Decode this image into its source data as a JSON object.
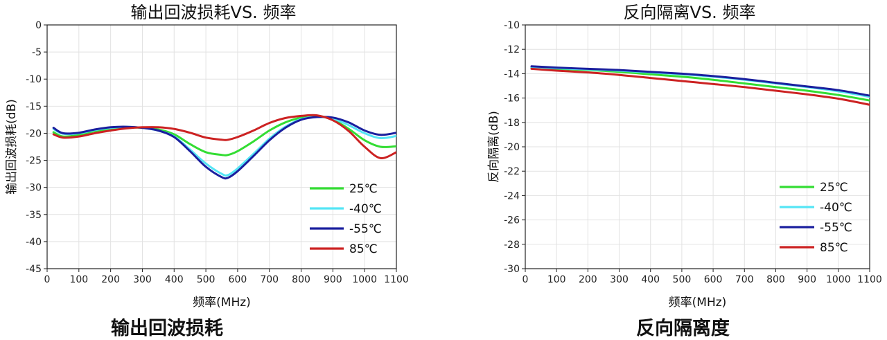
{
  "captions": [
    "输出回波损耗",
    "反向隔离度"
  ],
  "chart_data": [
    {
      "type": "line",
      "title": "输出回波损耗VS. 频率",
      "xlabel": "频率(MHz)",
      "ylabel": "输出回波损耗(dB)",
      "xlim": [
        0,
        1100
      ],
      "ylim": [
        -45,
        0
      ],
      "xticks": [
        0,
        100,
        200,
        300,
        400,
        500,
        600,
        700,
        800,
        900,
        1000,
        1100
      ],
      "yticks": [
        0,
        -5,
        -10,
        -15,
        -20,
        -25,
        -30,
        -35,
        -40,
        -45
      ],
      "grid": true,
      "legend_position": "bottom-right",
      "x": [
        20,
        50,
        100,
        150,
        200,
        250,
        300,
        350,
        400,
        450,
        500,
        550,
        570,
        600,
        650,
        700,
        750,
        800,
        850,
        900,
        950,
        1000,
        1050,
        1100
      ],
      "series": [
        {
          "name": "25℃",
          "color": "#33dd33",
          "values": [
            -19.8,
            -20.6,
            -20.3,
            -19.6,
            -19.2,
            -18.9,
            -19.0,
            -19.3,
            -20.2,
            -22.0,
            -23.5,
            -24.0,
            -24.0,
            -23.3,
            -21.5,
            -19.5,
            -18.0,
            -17.1,
            -16.8,
            -17.5,
            -19.2,
            -21.3,
            -22.5,
            -22.4
          ]
        },
        {
          "name": "-40℃",
          "color": "#55e5f5",
          "values": [
            -19.2,
            -20.1,
            -20.0,
            -19.4,
            -19.0,
            -18.8,
            -19.0,
            -19.5,
            -20.6,
            -23.0,
            -25.6,
            -27.5,
            -27.7,
            -26.5,
            -23.8,
            -21.0,
            -18.8,
            -17.4,
            -17.0,
            -17.3,
            -18.5,
            -20.0,
            -20.9,
            -20.5
          ]
        },
        {
          "name": "-55℃",
          "color": "#1a1f9e",
          "values": [
            -19.0,
            -20.0,
            -19.9,
            -19.3,
            -18.9,
            -18.8,
            -19.0,
            -19.5,
            -20.7,
            -23.3,
            -26.2,
            -28.1,
            -28.2,
            -27.0,
            -24.2,
            -21.3,
            -19.0,
            -17.5,
            -17.0,
            -17.1,
            -18.0,
            -19.5,
            -20.3,
            -19.9
          ]
        },
        {
          "name": "85℃",
          "color": "#cc2222",
          "values": [
            -20.2,
            -20.8,
            -20.6,
            -20.0,
            -19.5,
            -19.1,
            -18.9,
            -18.9,
            -19.2,
            -19.9,
            -20.8,
            -21.2,
            -21.2,
            -20.7,
            -19.5,
            -18.1,
            -17.2,
            -16.8,
            -16.7,
            -17.6,
            -19.6,
            -22.5,
            -24.6,
            -23.5
          ]
        }
      ]
    },
    {
      "type": "line",
      "title": "反向隔离VS. 频率",
      "xlabel": "频率(MHz)",
      "ylabel": "反向隔离(dB)",
      "xlim": [
        0,
        1100
      ],
      "ylim": [
        -30,
        -10
      ],
      "xticks": [
        0,
        100,
        200,
        300,
        400,
        500,
        600,
        700,
        800,
        900,
        1000,
        1100
      ],
      "yticks": [
        -10,
        -12,
        -14,
        -16,
        -18,
        -20,
        -22,
        -24,
        -26,
        -28,
        -30
      ],
      "grid": true,
      "legend_position": "bottom-right",
      "x": [
        20,
        100,
        200,
        300,
        400,
        500,
        600,
        700,
        800,
        900,
        1000,
        1100
      ],
      "series": [
        {
          "name": "25℃",
          "color": "#33dd33",
          "values": [
            -13.5,
            -13.6,
            -13.7,
            -13.85,
            -14.05,
            -14.25,
            -14.5,
            -14.8,
            -15.1,
            -15.4,
            -15.75,
            -16.2
          ]
        },
        {
          "name": "-40℃",
          "color": "#55e5f5",
          "values": [
            -13.45,
            -13.55,
            -13.65,
            -13.75,
            -13.9,
            -14.05,
            -14.25,
            -14.5,
            -14.8,
            -15.1,
            -15.45,
            -15.9
          ]
        },
        {
          "name": "-55℃",
          "color": "#1a1f9e",
          "values": [
            -13.4,
            -13.5,
            -13.6,
            -13.7,
            -13.85,
            -14.0,
            -14.2,
            -14.45,
            -14.75,
            -15.05,
            -15.35,
            -15.8
          ]
        },
        {
          "name": "85℃",
          "color": "#cc2222",
          "values": [
            -13.6,
            -13.75,
            -13.9,
            -14.1,
            -14.35,
            -14.6,
            -14.85,
            -15.1,
            -15.4,
            -15.7,
            -16.05,
            -16.55
          ]
        }
      ]
    }
  ]
}
